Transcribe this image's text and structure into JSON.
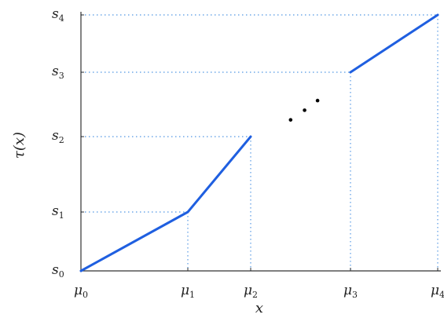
{
  "chart_data": {
    "type": "line",
    "title": "",
    "xlabel": "x",
    "ylabel": "τ(x)",
    "x_ticks": [
      {
        "base": "μ",
        "sub": "0",
        "value": 0
      },
      {
        "base": "μ",
        "sub": "1",
        "value": 1
      },
      {
        "base": "μ",
        "sub": "2",
        "value": 2
      },
      {
        "base": "μ",
        "sub": "3",
        "value": 3
      },
      {
        "base": "μ",
        "sub": "4",
        "value": 4
      }
    ],
    "y_ticks": [
      {
        "base": "s",
        "sub": "0",
        "value": 0
      },
      {
        "base": "s",
        "sub": "1",
        "value": 1
      },
      {
        "base": "s",
        "sub": "2",
        "value": 2
      },
      {
        "base": "s",
        "sub": "3",
        "value": 3
      },
      {
        "base": "s",
        "sub": "4",
        "value": 4
      }
    ],
    "series": [
      {
        "values": [
          [
            0,
            0
          ],
          [
            1,
            1
          ],
          [
            2,
            2
          ]
        ]
      },
      {
        "values": [
          [
            3,
            3
          ],
          [
            4,
            4
          ]
        ]
      }
    ],
    "ellipsis_points": [
      [
        2.4,
        2.26
      ],
      [
        2.54,
        2.41
      ],
      [
        2.67,
        2.56
      ]
    ],
    "guides": [
      {
        "x": 1,
        "y": 1
      },
      {
        "x": 2,
        "y": 2
      },
      {
        "x": 3,
        "y": 3
      },
      {
        "x": 4,
        "y": 4
      }
    ],
    "xlim": [
      0,
      4
    ],
    "ylim": [
      0,
      4
    ],
    "grid": false,
    "colors": {
      "line": "#1f5fe0",
      "guide": "#6fa8e8",
      "axis": "#333333",
      "dot": "#000000"
    }
  }
}
